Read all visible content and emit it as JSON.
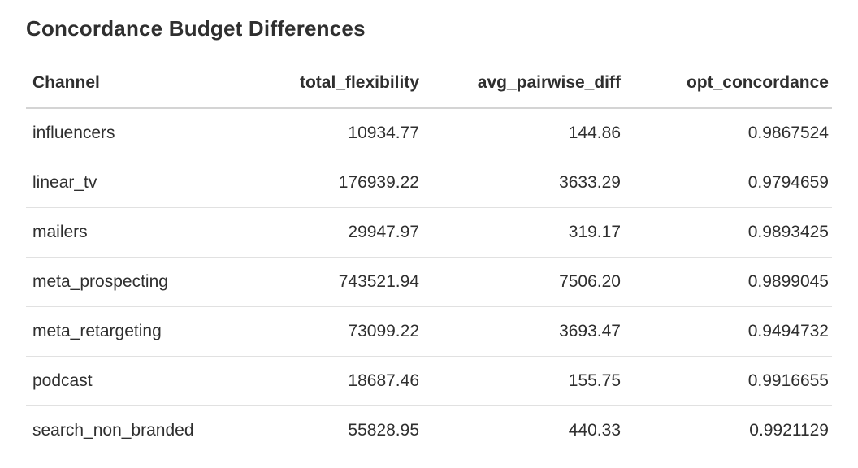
{
  "title": "Concordance Budget Differences",
  "table": {
    "columns": [
      "Channel",
      "total_flexibility",
      "avg_pairwise_diff",
      "opt_concordance"
    ],
    "column_aligns": [
      "left",
      "right",
      "right",
      "right"
    ],
    "rows": [
      [
        "influencers",
        "10934.77",
        "144.86",
        "0.9867524"
      ],
      [
        "linear_tv",
        "176939.22",
        "3633.29",
        "0.9794659"
      ],
      [
        "mailers",
        "29947.97",
        "319.17",
        "0.9893425"
      ],
      [
        "meta_prospecting",
        "743521.94",
        "7506.20",
        "0.9899045"
      ],
      [
        "meta_retargeting",
        "73099.22",
        "3693.47",
        "0.9494732"
      ],
      [
        "podcast",
        "18687.46",
        "155.75",
        "0.9916655"
      ],
      [
        "search_non_branded",
        "55828.95",
        "440.33",
        "0.9921129"
      ]
    ]
  },
  "colors": {
    "text": "#2f2f2f",
    "header_divider": "#d4d4d4",
    "row_divider": "#e1e1e1",
    "background": "#ffffff"
  }
}
